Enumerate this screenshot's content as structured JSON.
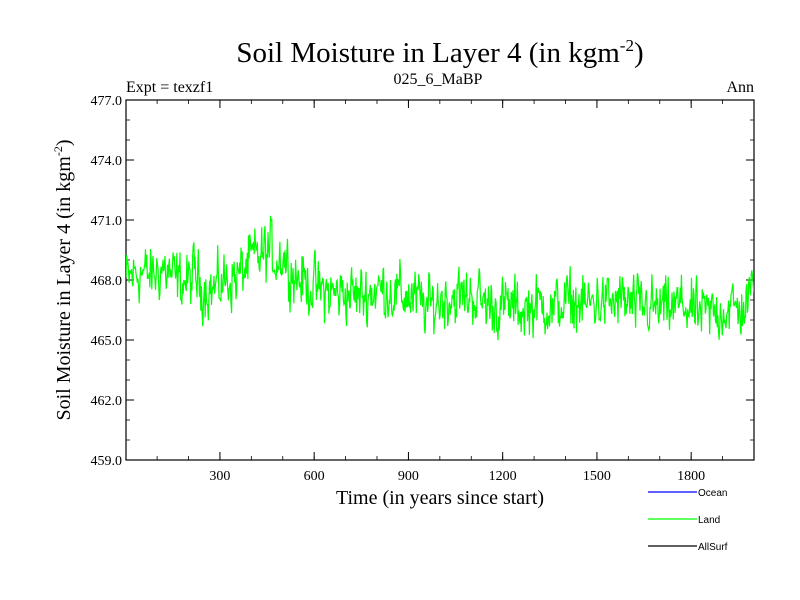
{
  "chart_data": {
    "type": "line",
    "title": "Soil Moisture in Layer 4 (in kgm",
    "title_superscript": "-2",
    "title_suffix": ")",
    "subtitle_left": "Expt = texzf1",
    "subtitle_center": "025_6_MaBP",
    "subtitle_right": "Ann",
    "xlabel": "Time (in years since start)",
    "ylabel": "Soil Moisture in Layer 4 (in kgm",
    "ylabel_superscript": "-2",
    "ylabel_suffix": ")",
    "xlim": [
      1,
      2000
    ],
    "ylim": [
      459.0,
      477.0
    ],
    "xticks": [
      300,
      600,
      900,
      1200,
      1500,
      1800
    ],
    "xtick_labels": [
      "300",
      "600",
      "900",
      "1200",
      "1500",
      "1800"
    ],
    "yticks": [
      459.0,
      462.0,
      465.0,
      468.0,
      471.0,
      474.0,
      477.0
    ],
    "ytick_labels": [
      "459.0",
      "462.0",
      "465.0",
      "468.0",
      "471.0",
      "474.0",
      "477.0"
    ],
    "series": [
      {
        "name": "Land",
        "color": "#00ff00",
        "x": [
          1,
          40,
          80,
          120,
          160,
          200,
          220,
          240,
          280,
          320,
          360,
          400,
          430,
          460,
          480,
          500,
          515,
          540,
          580,
          620,
          660,
          700,
          740,
          780,
          820,
          860,
          900,
          930,
          960,
          980,
          1000,
          1040,
          1080,
          1100,
          1140,
          1180,
          1220,
          1260,
          1300,
          1340,
          1360,
          1380,
          1420,
          1460,
          1500,
          1540,
          1580,
          1620,
          1660,
          1700,
          1740,
          1780,
          1800,
          1840,
          1880,
          1920,
          1960,
          1990,
          2000
        ],
        "values": [
          468.0,
          468.4,
          468.2,
          468.6,
          468.0,
          467.9,
          468.3,
          467.7,
          467.5,
          468.0,
          468.2,
          469.0,
          469.2,
          469.5,
          469.0,
          469.3,
          468.8,
          468.2,
          467.8,
          467.5,
          467.3,
          467.4,
          467.2,
          467.4,
          467.6,
          467.3,
          467.2,
          467.0,
          466.6,
          466.8,
          467.0,
          467.2,
          467.1,
          467.3,
          466.9,
          466.6,
          466.7,
          466.5,
          466.7,
          466.8,
          466.4,
          466.8,
          466.9,
          466.7,
          467.0,
          466.8,
          467.0,
          466.6,
          466.7,
          466.5,
          466.6,
          466.8,
          466.4,
          466.3,
          466.4,
          466.6,
          466.5,
          467.0,
          469.0
        ],
        "noise_amplitude": 3.2
      },
      {
        "name": "Ocean",
        "color": "#0000ff",
        "values": []
      },
      {
        "name": "AllSurf",
        "color": "#000000",
        "values": []
      }
    ],
    "legend": [
      "Ocean",
      "Land",
      "AllSurf"
    ],
    "legend_position": "bottom-right"
  }
}
